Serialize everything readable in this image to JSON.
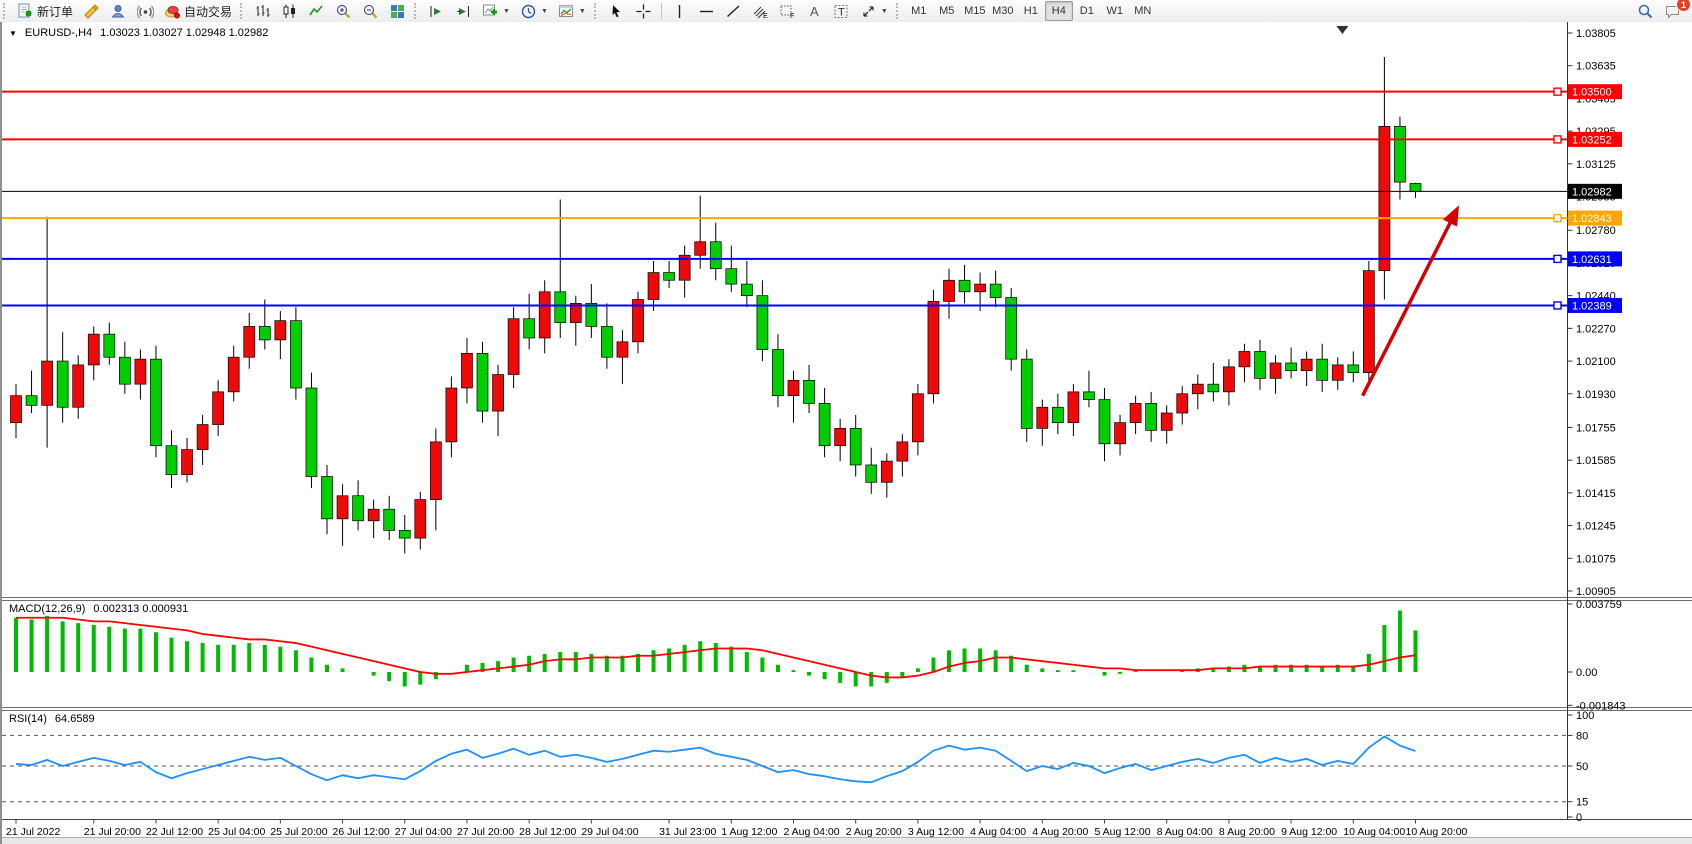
{
  "toolbar": {
    "new_order_label": "新订单",
    "auto_trading_label": "自动交易",
    "timeframes": [
      "M1",
      "M5",
      "M15",
      "M30",
      "H1",
      "H4",
      "D1",
      "W1",
      "MN"
    ],
    "active_timeframe": "H4",
    "notification_count": "1"
  },
  "chart_header": {
    "symbol_period": "EURUSD-,H4",
    "ohlc": "1.03023 1.03027 1.02948 1.02982"
  },
  "panes": {
    "macd_title": "MACD(12,26,9)",
    "macd_values": "0.002313 0.000931",
    "rsi_title": "RSI(14)",
    "rsi_value": "64.6589"
  },
  "chart_data": [
    {
      "type": "candlestick",
      "symbol": "EURUSD-",
      "timeframe": "H4",
      "ylim": [
        1.00905,
        1.03805
      ],
      "up_color": "#ee0a0a",
      "down_color": "#00ce00",
      "wick_color": "#000000",
      "price_axis_ticks": [
        {
          "label": "1.03805",
          "value": 1.03805
        },
        {
          "label": "1.03635",
          "value": 1.03635
        },
        {
          "label": "1.03465",
          "value": 1.03465
        },
        {
          "label": "1.03295",
          "value": 1.03295
        },
        {
          "label": "1.03125",
          "value": 1.03125
        },
        {
          "label": "1.02955",
          "value": 1.02955
        },
        {
          "label": "1.02780",
          "value": 1.0278
        },
        {
          "label": "1.02610",
          "value": 1.0261
        },
        {
          "label": "1.02440",
          "value": 1.0244
        },
        {
          "label": "1.02270",
          "value": 1.0227
        },
        {
          "label": "1.02100",
          "value": 1.021
        },
        {
          "label": "1.01930",
          "value": 1.0193
        },
        {
          "label": "1.01755",
          "value": 1.01755
        },
        {
          "label": "1.01585",
          "value": 1.01585
        },
        {
          "label": "1.01415",
          "value": 1.01415
        },
        {
          "label": "1.01245",
          "value": 1.01245
        },
        {
          "label": "1.01075",
          "value": 1.01075
        },
        {
          "label": "1.00905",
          "value": 1.00905
        }
      ],
      "levels": [
        {
          "price": 1.035,
          "label": "1.03500",
          "color": "#ff0000"
        },
        {
          "price": 1.03252,
          "label": "1.03252",
          "color": "#ff0000"
        },
        {
          "price": 1.02843,
          "label": "1.02843",
          "color": "#ffa500"
        },
        {
          "price": 1.02631,
          "label": "1.02631",
          "color": "#0000ff"
        },
        {
          "price": 1.02389,
          "label": "1.02389",
          "color": "#0000ff"
        }
      ],
      "current_price": {
        "price": 1.02982,
        "label": "1.02982",
        "color": "#000000"
      },
      "candles": [
        [
          1.0178,
          1.0198,
          1.017,
          1.0192
        ],
        [
          1.0192,
          1.0205,
          1.0183,
          1.0187
        ],
        [
          1.0187,
          1.0285,
          1.0165,
          1.021
        ],
        [
          1.021,
          1.0225,
          1.0178,
          1.0186
        ],
        [
          1.0186,
          1.0213,
          1.018,
          1.0208
        ],
        [
          1.0208,
          1.0228,
          1.02,
          1.0224
        ],
        [
          1.0224,
          1.023,
          1.0208,
          1.0212
        ],
        [
          1.0212,
          1.022,
          1.0193,
          1.0198
        ],
        [
          1.0198,
          1.0216,
          1.019,
          1.0211
        ],
        [
          1.0211,
          1.0218,
          1.016,
          1.0166
        ],
        [
          1.0166,
          1.0174,
          1.0144,
          1.0151
        ],
        [
          1.0151,
          1.017,
          1.0147,
          1.0164
        ],
        [
          1.0164,
          1.0182,
          1.0156,
          1.0177
        ],
        [
          1.0177,
          1.02,
          1.0171,
          1.0194
        ],
        [
          1.0194,
          1.0218,
          1.0189,
          1.0212
        ],
        [
          1.0212,
          1.0235,
          1.0206,
          1.0228
        ],
        [
          1.0228,
          1.0242,
          1.0216,
          1.0221
        ],
        [
          1.0221,
          1.0236,
          1.0211,
          1.0231
        ],
        [
          1.0231,
          1.0238,
          1.019,
          1.0196
        ],
        [
          1.0196,
          1.0204,
          1.0144,
          1.015
        ],
        [
          1.015,
          1.0156,
          1.012,
          1.0128
        ],
        [
          1.0128,
          1.0146,
          1.0114,
          1.014
        ],
        [
          1.014,
          1.0148,
          1.0122,
          1.0127
        ],
        [
          1.0127,
          1.0138,
          1.0118,
          1.0133
        ],
        [
          1.0133,
          1.014,
          1.0117,
          1.0122
        ],
        [
          1.0122,
          1.013,
          1.011,
          1.0118
        ],
        [
          1.0118,
          1.0142,
          1.0112,
          1.0138
        ],
        [
          1.0138,
          1.0175,
          1.0122,
          1.0168
        ],
        [
          1.0168,
          1.0202,
          1.016,
          1.0196
        ],
        [
          1.0196,
          1.0222,
          1.0188,
          1.0214
        ],
        [
          1.0214,
          1.022,
          1.0178,
          1.0184
        ],
        [
          1.0184,
          1.0208,
          1.0171,
          1.0203
        ],
        [
          1.0203,
          1.0238,
          1.0196,
          1.0232
        ],
        [
          1.0232,
          1.0245,
          1.0216,
          1.0222
        ],
        [
          1.0222,
          1.0252,
          1.0214,
          1.0246
        ],
        [
          1.0246,
          1.0294,
          1.0222,
          1.023
        ],
        [
          1.023,
          1.0244,
          1.0218,
          1.024
        ],
        [
          1.024,
          1.025,
          1.0222,
          1.0228
        ],
        [
          1.0228,
          1.024,
          1.0206,
          1.0212
        ],
        [
          1.0212,
          1.0226,
          1.0198,
          1.022
        ],
        [
          1.022,
          1.0246,
          1.0214,
          1.0242
        ],
        [
          1.0242,
          1.0262,
          1.0236,
          1.0256
        ],
        [
          1.0256,
          1.0262,
          1.0248,
          1.0252
        ],
        [
          1.0252,
          1.027,
          1.0243,
          1.0265
        ],
        [
          1.0265,
          1.0296,
          1.0258,
          1.0272
        ],
        [
          1.0272,
          1.0282,
          1.0252,
          1.0258
        ],
        [
          1.0258,
          1.027,
          1.0246,
          1.025
        ],
        [
          1.025,
          1.0262,
          1.0238,
          1.0244
        ],
        [
          1.0244,
          1.0252,
          1.021,
          1.0216
        ],
        [
          1.0216,
          1.0224,
          1.0186,
          1.0192
        ],
        [
          1.0192,
          1.0205,
          1.0178,
          1.02
        ],
        [
          1.02,
          1.0208,
          1.0183,
          1.0188
        ],
        [
          1.0188,
          1.0196,
          1.016,
          1.0166
        ],
        [
          1.0166,
          1.018,
          1.0158,
          1.0175
        ],
        [
          1.0175,
          1.0182,
          1.015,
          1.0156
        ],
        [
          1.0156,
          1.0165,
          1.0141,
          1.0147
        ],
        [
          1.0147,
          1.0162,
          1.0139,
          1.0158
        ],
        [
          1.0158,
          1.0172,
          1.015,
          1.0168
        ],
        [
          1.0168,
          1.0198,
          1.0161,
          1.0193
        ],
        [
          1.0193,
          1.0247,
          1.0188,
          1.0241
        ],
        [
          1.0241,
          1.0258,
          1.0232,
          1.0252
        ],
        [
          1.0252,
          1.026,
          1.024,
          1.0246
        ],
        [
          1.0246,
          1.0256,
          1.0236,
          1.025
        ],
        [
          1.025,
          1.0257,
          1.0238,
          1.0243
        ],
        [
          1.0243,
          1.0248,
          1.0205,
          1.0211
        ],
        [
          1.0211,
          1.0216,
          1.0168,
          1.0175
        ],
        [
          1.0175,
          1.019,
          1.0166,
          1.0186
        ],
        [
          1.0186,
          1.0193,
          1.0172,
          1.0178
        ],
        [
          1.0178,
          1.0198,
          1.0171,
          1.0194
        ],
        [
          1.0194,
          1.0205,
          1.0186,
          1.019
        ],
        [
          1.019,
          1.0196,
          1.0158,
          1.0167
        ],
        [
          1.0167,
          1.0182,
          1.0161,
          1.0178
        ],
        [
          1.0178,
          1.0192,
          1.0172,
          1.0188
        ],
        [
          1.0188,
          1.0194,
          1.0168,
          1.0174
        ],
        [
          1.0174,
          1.0187,
          1.0167,
          1.0183
        ],
        [
          1.0183,
          1.0197,
          1.0177,
          1.0193
        ],
        [
          1.0193,
          1.0203,
          1.0185,
          1.0198
        ],
        [
          1.0198,
          1.0209,
          1.0189,
          1.0194
        ],
        [
          1.0194,
          1.0211,
          1.0187,
          1.0207
        ],
        [
          1.0207,
          1.0219,
          1.0199,
          1.0215
        ],
        [
          1.0215,
          1.0221,
          1.0195,
          1.0201
        ],
        [
          1.0201,
          1.0213,
          1.0193,
          1.0209
        ],
        [
          1.0209,
          1.0217,
          1.0201,
          1.0205
        ],
        [
          1.0205,
          1.0215,
          1.0197,
          1.0211
        ],
        [
          1.0211,
          1.0219,
          1.0194,
          1.02
        ],
        [
          1.02,
          1.0212,
          1.0195,
          1.0208
        ],
        [
          1.0208,
          1.0215,
          1.0199,
          1.0204
        ],
        [
          1.0204,
          1.0262,
          1.02,
          1.0257
        ],
        [
          1.0257,
          1.0368,
          1.0242,
          1.0332
        ],
        [
          1.0332,
          1.0337,
          1.0294,
          1.0303
        ],
        [
          1.03023,
          1.03027,
          1.02948,
          1.02982
        ]
      ],
      "time_axis": {
        "labels": [
          "21 Jul 2022",
          "21 Jul 20:00",
          "22 Jul 12:00",
          "25 Jul 04:00",
          "25 Jul 20:00",
          "26 Jul 12:00",
          "27 Jul 04:00",
          "27 Jul 20:00",
          "28 Jul 12:00",
          "29 Jul 04:00",
          "31 Jul 23:00",
          "1 Aug 12:00",
          "2 Aug 04:00",
          "2 Aug 20:00",
          "3 Aug 12:00",
          "4 Aug 04:00",
          "4 Aug 20:00",
          "5 Aug 12:00",
          "8 Aug 04:00",
          "8 Aug 20:00",
          "9 Aug 12:00",
          "10 Aug 04:00",
          "10 Aug 20:00"
        ],
        "bar_indices": [
          0,
          5,
          9,
          13,
          17,
          21,
          25,
          29,
          33,
          37,
          42,
          46,
          50,
          54,
          58,
          62,
          66,
          70,
          74,
          78,
          82,
          86,
          90
        ]
      },
      "arrow": {
        "from_bar": 86.6,
        "from_price": 1.0192,
        "to_bar": 92.8,
        "to_price": 1.0291,
        "color": "#d40000"
      },
      "shift_marker_bar": 85.3
    },
    {
      "type": "macd",
      "title": "MACD(12,26,9)",
      "values_display": "0.002313 0.000931",
      "histogram_color": "#00bb00",
      "signal_color": "#ff0000",
      "axis_ticks": [
        {
          "label": "0.003759",
          "value": 0.003759
        },
        {
          "label": "0.00",
          "value": 0
        },
        {
          "label": "-0.001843",
          "value": -0.001843
        }
      ],
      "histogram": [
        0.003,
        0.0029,
        0.0031,
        0.0028,
        0.0027,
        0.0026,
        0.0025,
        0.0024,
        0.0024,
        0.0022,
        0.0019,
        0.0017,
        0.0016,
        0.0015,
        0.0015,
        0.0016,
        0.0015,
        0.0014,
        0.0012,
        0.0008,
        0.0004,
        0.0002,
        0,
        -0.0002,
        -0.0005,
        -0.0008,
        -0.0007,
        -0.0004,
        0,
        0.0004,
        0.0005,
        0.0006,
        0.0008,
        0.0009,
        0.001,
        0.0011,
        0.0011,
        0.001,
        0.0009,
        0.0009,
        0.001,
        0.0012,
        0.0013,
        0.0015,
        0.0017,
        0.0016,
        0.0014,
        0.0011,
        0.0008,
        0.0004,
        0.0001,
        -0.0002,
        -0.0004,
        -0.0006,
        -0.0008,
        -0.0008,
        -0.0006,
        -0.0003,
        0.0002,
        0.0008,
        0.0012,
        0.0013,
        0.0013,
        0.0012,
        0.0009,
        0.0004,
        0.0002,
        0.0001,
        0.0001,
        0,
        -0.0002,
        -0.0001,
        0.0001,
        0,
        0,
        0.0001,
        0.0002,
        0.0002,
        0.0003,
        0.0004,
        0.0003,
        0.0004,
        0.0004,
        0.0004,
        0.0003,
        0.0004,
        0.0003,
        0.001,
        0.0026,
        0.0034,
        0.0023
      ],
      "signal": [
        0.003,
        0.003,
        0.003,
        0.003,
        0.0029,
        0.0028,
        0.0028,
        0.0027,
        0.0026,
        0.0025,
        0.0024,
        0.0023,
        0.0021,
        0.002,
        0.0019,
        0.0018,
        0.0018,
        0.0017,
        0.0016,
        0.0014,
        0.0012,
        0.001,
        0.0008,
        0.0006,
        0.0004,
        0.0002,
        0,
        -0.0001,
        -0.0001,
        0,
        0.0001,
        0.0002,
        0.0003,
        0.0004,
        0.0006,
        0.0007,
        0.0007,
        0.0008,
        0.0008,
        0.0008,
        0.0009,
        0.0009,
        0.001,
        0.0011,
        0.0012,
        0.0013,
        0.0013,
        0.0013,
        0.0012,
        0.001,
        0.0008,
        0.0006,
        0.0004,
        0.0002,
        0,
        -0.0002,
        -0.0003,
        -0.0003,
        -0.0002,
        0,
        0.0003,
        0.0005,
        0.0006,
        0.0008,
        0.0008,
        0.0007,
        0.0006,
        0.0005,
        0.0004,
        0.0003,
        0.0002,
        0.0002,
        0.0001,
        0.0001,
        0.0001,
        0.0001,
        0.0001,
        0.0002,
        0.0002,
        0.0002,
        0.0003,
        0.0003,
        0.0003,
        0.0003,
        0.0003,
        0.0003,
        0.0003,
        0.0004,
        0.0006,
        0.0008,
        0.00093
      ]
    },
    {
      "type": "rsi",
      "title": "RSI(14)",
      "value_display": "64.6589",
      "line_color": "#1e90ff",
      "axis_ticks": [
        {
          "label": "100",
          "value": 100
        },
        {
          "label": "80",
          "value": 80
        },
        {
          "label": "50",
          "value": 50
        },
        {
          "label": "15",
          "value": 15
        },
        {
          "label": "0",
          "value": 0
        }
      ],
      "dashed_levels": [
        80,
        50,
        15
      ],
      "values": [
        52,
        51,
        56,
        50,
        54,
        58,
        55,
        51,
        54,
        44,
        38,
        43,
        47,
        51,
        55,
        59,
        56,
        58,
        50,
        42,
        36,
        41,
        38,
        41,
        39,
        37,
        45,
        55,
        62,
        66,
        58,
        62,
        67,
        61,
        65,
        59,
        61,
        58,
        54,
        57,
        61,
        65,
        64,
        66,
        68,
        62,
        59,
        56,
        50,
        44,
        46,
        42,
        40,
        37,
        35,
        34,
        40,
        45,
        54,
        65,
        70,
        66,
        68,
        65,
        55,
        45,
        50,
        47,
        53,
        50,
        43,
        48,
        52,
        46,
        50,
        54,
        57,
        53,
        58,
        61,
        53,
        58,
        54,
        57,
        51,
        55,
        52,
        68,
        79,
        70,
        64.66
      ]
    }
  ]
}
